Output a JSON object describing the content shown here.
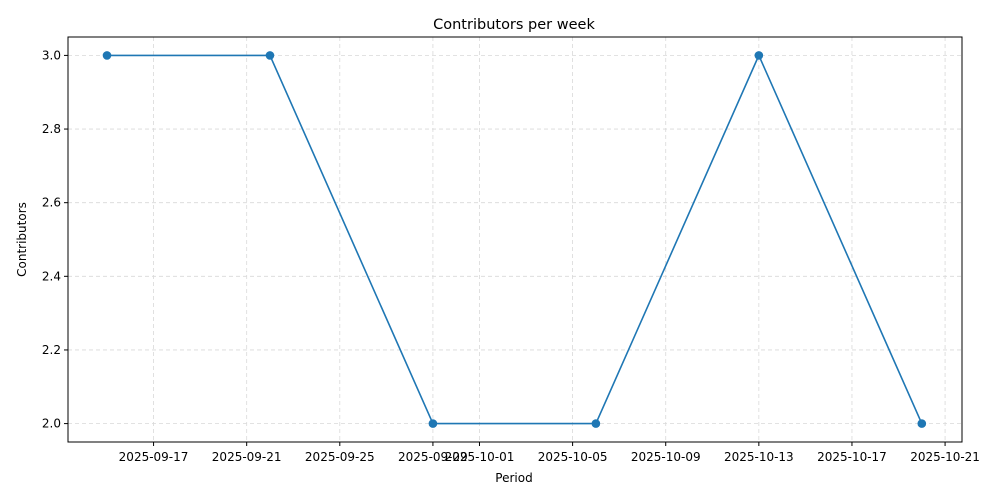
{
  "chart_data": {
    "type": "line",
    "title": "Contributors per week",
    "xlabel": "Period",
    "ylabel": "Contributors",
    "x": [
      "2025-09-15",
      "2025-09-22",
      "2025-09-29",
      "2025-10-06",
      "2025-10-13",
      "2025-10-20"
    ],
    "series": [
      {
        "values": [
          3,
          3,
          2,
          2,
          3,
          2
        ],
        "color": "#1f77b4"
      }
    ],
    "xlim": [
      "2025-09-13",
      "2025-10-21"
    ],
    "ylim": [
      1.95,
      3.05
    ],
    "x_ticks": [
      "2025-09-17",
      "2025-09-21",
      "2025-09-25",
      "2025-09-29",
      "2025-10-01",
      "2025-10-05",
      "2025-10-09",
      "2025-10-13",
      "2025-10-17",
      "2025-10-21"
    ],
    "y_ticks": [
      "2.0",
      "2.2",
      "2.4",
      "2.6",
      "2.8",
      "3.0"
    ],
    "grid": true,
    "grid_style": "dashed",
    "marker": "circle"
  }
}
